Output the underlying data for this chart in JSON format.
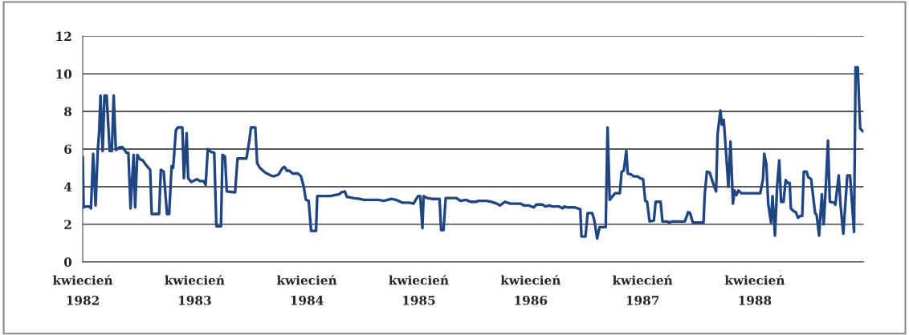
{
  "chart_data": {
    "type": "line",
    "x": [
      "1982-04-01",
      "1982-04-04",
      "1982-04-13",
      "1982-04-22",
      "1982-04-28",
      "1982-05-05",
      "1982-05-13",
      "1982-05-20",
      "1982-05-25",
      "1982-05-29",
      "1982-06-05",
      "1982-06-11",
      "1982-06-18",
      "1982-06-28",
      "1982-07-05",
      "1982-07-11",
      "1982-07-18",
      "1982-07-31",
      "1982-08-09",
      "1982-08-22",
      "1982-08-28",
      "1982-09-04",
      "1982-09-14",
      "1982-09-19",
      "1982-09-26",
      "1982-10-05",
      "1982-10-14",
      "1982-10-27",
      "1982-11-07",
      "1982-11-12",
      "1982-12-06",
      "1982-12-12",
      "1982-12-21",
      "1983-01-01",
      "1983-01-08",
      "1983-01-16",
      "1983-01-21",
      "1983-01-30",
      "1983-02-05",
      "1983-02-20",
      "1983-02-25",
      "1983-03-06",
      "1983-03-11",
      "1983-03-21",
      "1983-04-09",
      "1983-04-18",
      "1983-04-30",
      "1983-05-07",
      "1983-05-14",
      "1983-05-24",
      "1983-06-04",
      "1983-06-11",
      "1983-06-26",
      "1983-07-01",
      "1983-07-09",
      "1983-07-15",
      "1983-08-11",
      "1983-08-19",
      "1983-09-17",
      "1983-09-26",
      "1983-10-02",
      "1983-10-16",
      "1983-10-22",
      "1983-10-31",
      "1983-11-17",
      "1983-12-05",
      "1983-12-15",
      "1983-12-31",
      "1984-01-13",
      "1984-01-19",
      "1984-01-27",
      "1984-02-04",
      "1984-02-15",
      "1984-03-03",
      "1984-03-13",
      "1984-03-22",
      "1984-03-29",
      "1984-04-07",
      "1984-04-15",
      "1984-05-01",
      "1984-05-05",
      "1984-06-16",
      "1984-06-29",
      "1984-07-16",
      "1984-07-23",
      "1984-08-03",
      "1984-08-10",
      "1984-08-16",
      "1984-08-30",
      "1984-09-20",
      "1984-10-04",
      "1984-11-21",
      "1984-12-08",
      "1985-01-02",
      "1985-01-17",
      "1985-02-08",
      "1985-03-02",
      "1985-03-15",
      "1985-03-24",
      "1985-03-30",
      "1985-04-06",
      "1985-04-13",
      "1985-04-17",
      "1985-04-28",
      "1985-05-15",
      "1985-06-08",
      "1985-06-13",
      "1985-06-21",
      "1985-06-28",
      "1985-08-02",
      "1985-08-15",
      "1985-09-02",
      "1985-09-17",
      "1985-10-07",
      "1985-10-11",
      "1985-11-07",
      "1985-11-24",
      "1985-12-12",
      "1985-12-22",
      "1986-01-07",
      "1986-01-25",
      "1986-02-27",
      "1986-03-11",
      "1986-03-27",
      "1986-04-11",
      "1986-04-20",
      "1986-05-10",
      "1986-05-19",
      "1986-06-01",
      "1986-06-10",
      "1986-07-02",
      "1986-07-15",
      "1986-07-19",
      "1986-08-01",
      "1986-08-23",
      "1986-09-10",
      "1986-09-14",
      "1986-09-27",
      "1986-10-04",
      "1986-10-19",
      "1986-10-26",
      "1986-11-04",
      "1986-11-12",
      "1986-12-02",
      "1986-12-08",
      "1986-12-15",
      "1987-01-01",
      "1987-01-17",
      "1987-01-23",
      "1987-01-30",
      "1987-02-07",
      "1987-02-12",
      "1987-02-23",
      "1987-03-03",
      "1987-03-16",
      "1987-03-24",
      "1987-04-03",
      "1987-04-10",
      "1987-04-16",
      "1987-04-24",
      "1987-05-08",
      "1987-05-14",
      "1987-05-30",
      "1987-06-05",
      "1987-06-21",
      "1987-06-25",
      "1987-07-08",
      "1987-08-17",
      "1987-08-28",
      "1987-09-03",
      "1987-09-12",
      "1987-10-17",
      "1987-10-21",
      "1987-10-28",
      "1987-11-06",
      "1987-11-21",
      "1987-11-27",
      "1987-12-02",
      "1987-12-11",
      "1987-12-16",
      "1987-12-22",
      "1987-12-30",
      "1988-01-06",
      "1988-01-13",
      "1988-01-21",
      "1988-01-26",
      "1988-02-01",
      "1988-02-08",
      "1988-02-17",
      "1988-04-06",
      "1988-04-19",
      "1988-04-28",
      "1988-05-02",
      "1988-05-09",
      "1988-05-15",
      "1988-05-24",
      "1988-05-29",
      "1988-06-06",
      "1988-06-13",
      "1988-06-20",
      "1988-06-26",
      "1988-07-04",
      "1988-07-11",
      "1988-07-17",
      "1988-07-24",
      "1988-07-28",
      "1988-08-06",
      "1988-08-13",
      "1988-08-20",
      "1988-08-28",
      "1988-09-03",
      "1988-09-08",
      "1988-09-17",
      "1988-09-23",
      "1988-10-02",
      "1988-10-15",
      "1988-10-20",
      "1988-10-28",
      "1988-11-06",
      "1988-11-12",
      "1988-11-19",
      "1988-11-26",
      "1988-12-02",
      "1988-12-16",
      "1988-12-20",
      "1988-12-31",
      "1989-01-06",
      "1989-01-15",
      "1989-01-28",
      "1989-02-06",
      "1989-02-19",
      "1989-02-24",
      "1989-03-03",
      "1989-03-11",
      "1989-03-19"
    ],
    "series": [
      {
        "color": "#1f4582",
        "values": [
          5.6,
          2.9,
          2.95,
          2.95,
          2.85,
          5.75,
          3.0,
          5.9,
          7.0,
          8.85,
          5.9,
          8.85,
          8.85,
          5.9,
          5.9,
          8.85,
          5.95,
          6.1,
          6.1,
          5.8,
          5.8,
          2.85,
          5.7,
          2.9,
          5.7,
          5.45,
          5.4,
          5.1,
          4.9,
          2.55,
          2.55,
          4.9,
          4.8,
          2.55,
          2.55,
          5.1,
          5.0,
          7.0,
          7.15,
          7.15,
          4.45,
          6.85,
          4.45,
          4.25,
          4.4,
          4.3,
          4.3,
          4.1,
          6.0,
          5.85,
          5.8,
          1.9,
          1.9,
          5.7,
          5.6,
          3.75,
          3.7,
          5.5,
          5.5,
          6.4,
          7.15,
          7.15,
          5.25,
          5.0,
          4.75,
          4.6,
          4.55,
          4.65,
          5.0,
          5.05,
          4.85,
          4.85,
          4.7,
          4.7,
          4.55,
          4.0,
          3.3,
          3.25,
          1.65,
          1.65,
          3.5,
          3.5,
          3.55,
          3.6,
          3.7,
          3.75,
          3.45,
          3.45,
          3.4,
          3.35,
          3.3,
          3.3,
          3.25,
          3.35,
          3.3,
          3.15,
          3.15,
          3.1,
          3.35,
          3.5,
          3.5,
          1.8,
          3.5,
          3.4,
          3.35,
          3.35,
          1.7,
          1.7,
          3.4,
          3.4,
          3.25,
          3.3,
          3.2,
          3.2,
          3.25,
          3.25,
          3.2,
          3.1,
          3.0,
          3.2,
          3.1,
          3.1,
          3.0,
          3.0,
          2.9,
          3.05,
          3.05,
          2.95,
          3.0,
          2.95,
          2.95,
          2.85,
          2.95,
          2.9,
          2.9,
          2.8,
          1.35,
          1.35,
          2.6,
          2.6,
          2.2,
          1.25,
          1.85,
          1.85,
          7.15,
          3.3,
          3.65,
          3.65,
          4.8,
          4.85,
          5.9,
          4.7,
          4.65,
          4.55,
          4.55,
          4.45,
          4.4,
          3.25,
          3.2,
          2.15,
          2.2,
          3.2,
          3.2,
          2.15,
          2.15,
          2.1,
          2.15,
          2.15,
          2.65,
          2.6,
          2.1,
          2.1,
          3.6,
          4.8,
          4.75,
          4.0,
          3.75,
          6.8,
          8.05,
          7.3,
          7.55,
          5.7,
          4.0,
          6.4,
          3.1,
          3.8,
          3.55,
          3.8,
          3.65,
          3.65,
          3.65,
          4.4,
          5.75,
          5.2,
          3.1,
          2.1,
          3.5,
          1.4,
          4.0,
          5.4,
          3.2,
          3.2,
          4.35,
          4.2,
          4.2,
          2.85,
          2.7,
          2.65,
          2.35,
          2.45,
          2.45,
          4.8,
          4.8,
          4.5,
          4.4,
          2.6,
          2.5,
          1.4,
          3.6,
          2.0,
          4.0,
          6.45,
          3.2,
          3.15,
          3.05,
          4.6,
          3.0,
          1.5,
          4.6,
          4.6,
          1.6,
          10.35,
          10.35,
          7.1,
          6.95
        ]
      }
    ],
    "xlim": [
      "1982-04-01",
      "1989-03-22"
    ],
    "xticks": [
      {
        "value": "1982-04-01",
        "label": "kwiecień\n1982"
      },
      {
        "value": "1983-04-01",
        "label": "kwiecień\n1983"
      },
      {
        "value": "1984-04-01",
        "label": "kwiecień\n1984"
      },
      {
        "value": "1985-04-01",
        "label": "kwiecień\n1985"
      },
      {
        "value": "1986-04-01",
        "label": "kwiecień\n1986"
      },
      {
        "value": "1987-04-01",
        "label": "kwiecień\n1987"
      },
      {
        "value": "1988-04-01",
        "label": "kwiecień\n1988"
      }
    ],
    "ylim": [
      0,
      12
    ],
    "yticks": [
      0,
      2,
      4,
      6,
      8,
      10,
      12
    ],
    "grid": "y",
    "line_style": "solid"
  }
}
